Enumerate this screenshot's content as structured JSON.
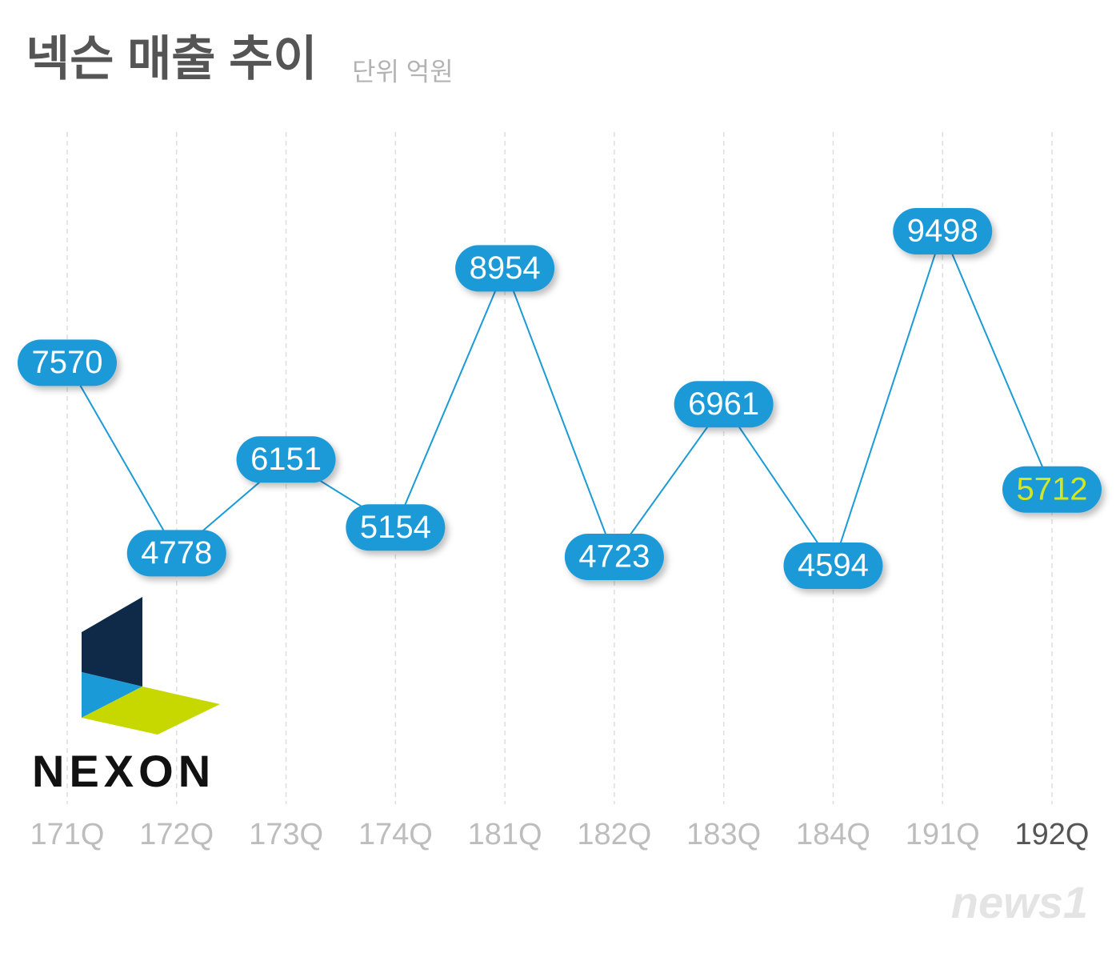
{
  "chart_data": {
    "type": "line",
    "title": "넥슨 매출 추이",
    "subtitle": "단위 억원",
    "categories": [
      "171Q",
      "172Q",
      "173Q",
      "174Q",
      "181Q",
      "182Q",
      "183Q",
      "184Q",
      "191Q",
      "192Q"
    ],
    "values": [
      7570,
      4778,
      6151,
      5154,
      8954,
      4723,
      6961,
      4594,
      9498,
      5712
    ],
    "color": "#1b9ad8",
    "highlight_color": "#d4e61e"
  },
  "logo_text": "NEXON",
  "watermark": "news1"
}
